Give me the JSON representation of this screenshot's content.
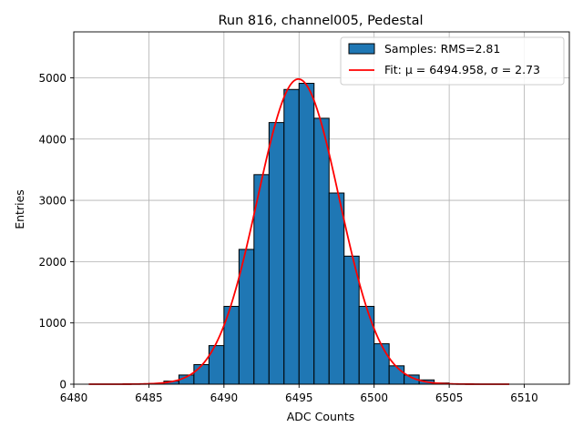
{
  "chart_data": {
    "type": "histogram",
    "title": "Run 816, channel005, Pedestal",
    "xlabel": "ADC Counts",
    "ylabel": "Entries",
    "xlim": [
      6480,
      6513
    ],
    "ylim": [
      0,
      5750
    ],
    "xticks": [
      6480,
      6485,
      6490,
      6495,
      6500,
      6505,
      6510
    ],
    "yticks": [
      0,
      1000,
      2000,
      3000,
      4000,
      5000
    ],
    "grid": true,
    "legend_position": "top-right",
    "bins": {
      "edges": [
        6484,
        6485,
        6486,
        6487,
        6488,
        6489,
        6490,
        6491,
        6492,
        6493,
        6494,
        6495,
        6496,
        6497,
        6498,
        6499,
        6500,
        6501,
        6502,
        6503,
        6504,
        6505,
        6506,
        6507
      ],
      "counts": [
        5,
        12,
        50,
        150,
        320,
        630,
        1270,
        2200,
        3420,
        4270,
        4810,
        4910,
        4340,
        3120,
        2090,
        1270,
        660,
        300,
        150,
        70,
        20,
        5,
        2
      ]
    },
    "series": [
      {
        "name": "Samples: RMS=2.81",
        "kind": "histogram",
        "color": "#1f77b4",
        "edgecolor": "#000000"
      },
      {
        "name": "Fit: μ = 6494.958, σ = 2.73",
        "kind": "gaussian-fit",
        "color": "#ff0000",
        "mu": 6494.958,
        "sigma": 2.73,
        "amplitude": 4980,
        "x_range": [
          6481,
          6509
        ]
      }
    ]
  }
}
